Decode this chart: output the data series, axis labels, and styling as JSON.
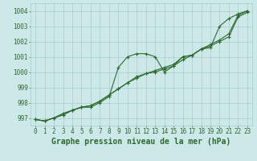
{
  "title": "Graphe pression niveau de la mer (hPa)",
  "xlabel_hours": [
    0,
    1,
    2,
    3,
    4,
    5,
    6,
    7,
    8,
    9,
    10,
    11,
    12,
    13,
    14,
    15,
    16,
    17,
    18,
    19,
    20,
    21,
    22,
    23
  ],
  "line1": [
    996.9,
    996.8,
    997.0,
    997.3,
    997.5,
    997.7,
    997.7,
    998.0,
    998.4,
    1000.3,
    1001.0,
    1001.2,
    1001.2,
    1001.0,
    1000.0,
    1000.4,
    1001.0,
    1001.1,
    1001.5,
    1001.6,
    1003.0,
    1003.5,
    1003.8,
    1004.0
  ],
  "line2": [
    996.9,
    996.8,
    997.0,
    997.2,
    997.5,
    997.7,
    997.8,
    998.1,
    998.5,
    998.9,
    999.3,
    999.7,
    999.9,
    1000.1,
    1000.3,
    1000.5,
    1001.0,
    1001.1,
    1001.5,
    1001.8,
    1002.1,
    1002.5,
    1003.7,
    1004.0
  ],
  "line3": [
    996.9,
    996.8,
    997.0,
    997.2,
    997.5,
    997.7,
    997.8,
    998.1,
    998.5,
    998.9,
    999.3,
    999.6,
    999.9,
    1000.0,
    1000.2,
    1000.4,
    1000.8,
    1001.1,
    1001.5,
    1001.7,
    1002.0,
    1002.3,
    1003.6,
    1003.9
  ],
  "line_color": "#2d6a2d",
  "bg_color": "#cce8e8",
  "grid_color": "#aacccc",
  "ylim": [
    996.5,
    1004.5
  ],
  "yticks": [
    997,
    998,
    999,
    1000,
    1001,
    1002,
    1003,
    1004
  ],
  "title_fontsize": 7,
  "tick_fontsize": 5.5,
  "figwidth": 3.2,
  "figheight": 2.0,
  "dpi": 100
}
